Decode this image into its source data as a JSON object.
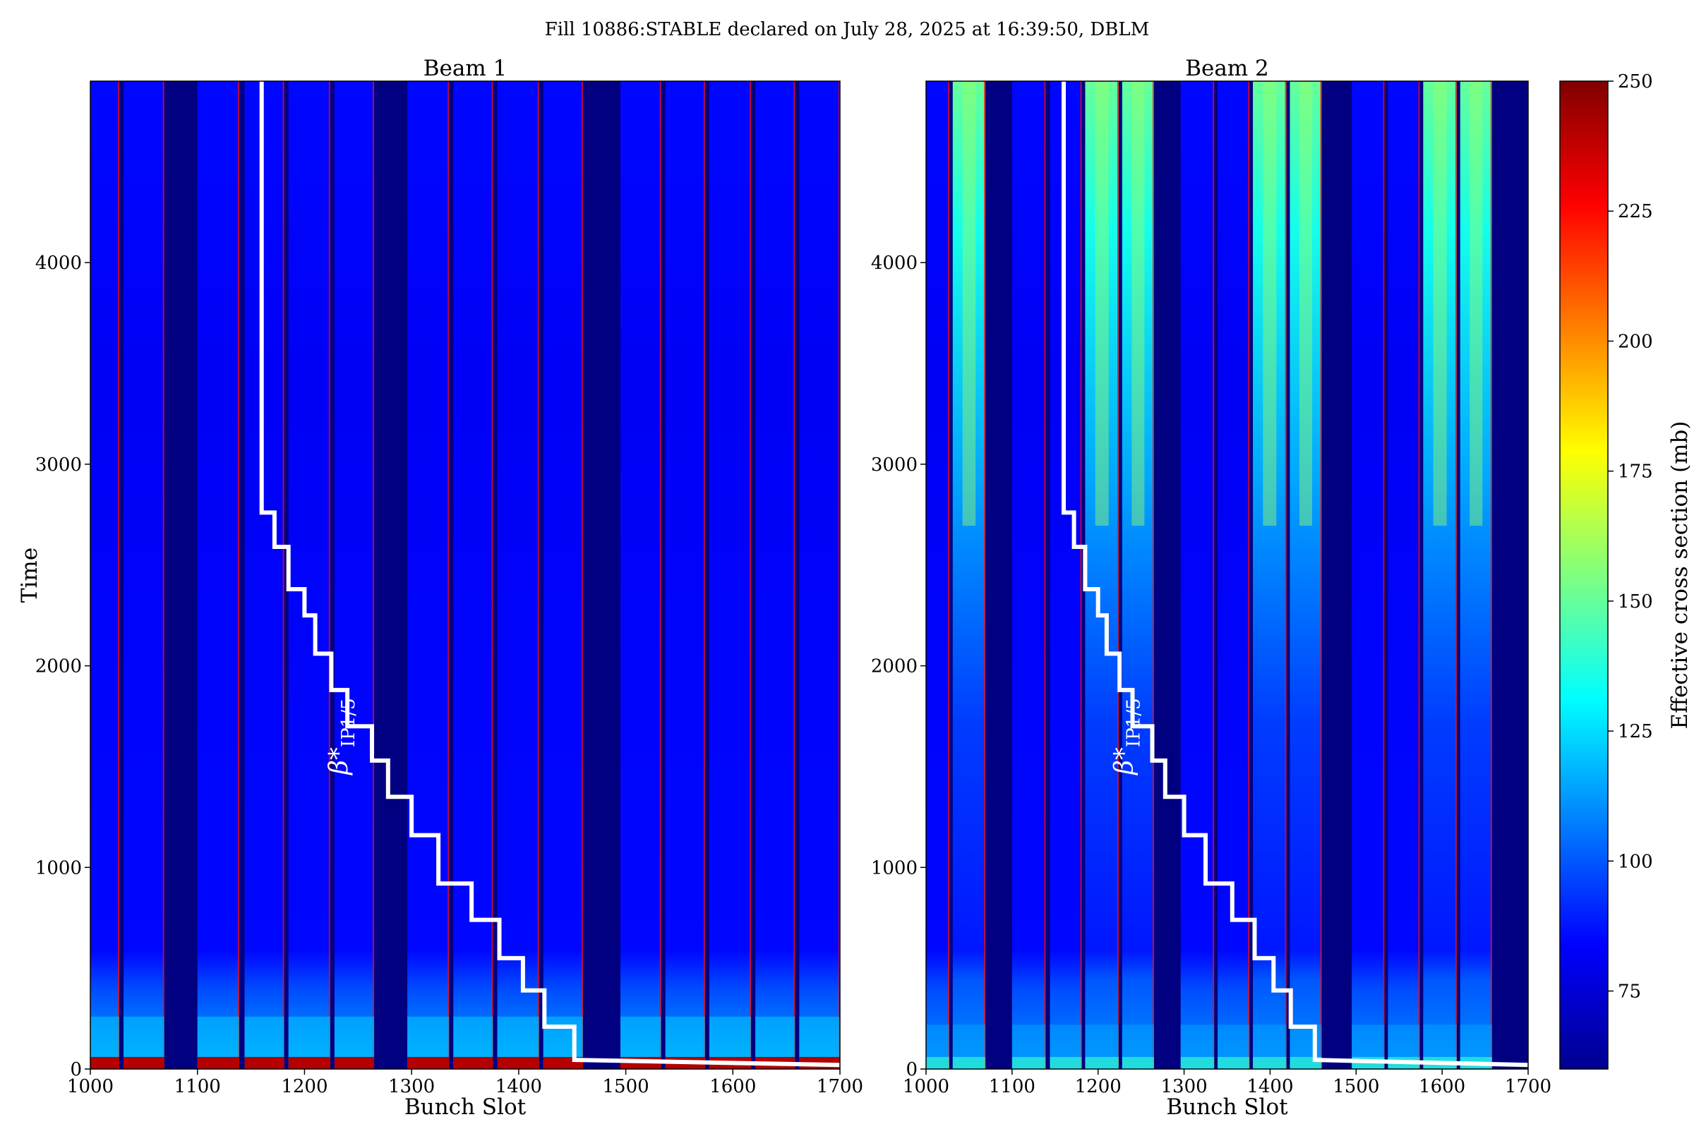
{
  "figure": {
    "title": "Fill 10886:STABLE declared on July 28, 2025 at 16:39:50, DBLM"
  },
  "colorbar": {
    "label": "Effective cross section (mb)",
    "range": [
      60,
      250
    ],
    "ticks": [
      75,
      100,
      125,
      150,
      175,
      200,
      225,
      250
    ],
    "colormap": "jet"
  },
  "chart_data": [
    {
      "type": "heatmap",
      "title": "Beam 1",
      "xlabel": "Bunch Slot",
      "ylabel": "Time",
      "xlim": [
        1000,
        1700
      ],
      "ylim": [
        0,
        4900
      ],
      "xticks": [
        1000,
        1100,
        1200,
        1300,
        1400,
        1500,
        1600,
        1700
      ],
      "yticks": [
        0,
        1000,
        2000,
        3000,
        4000
      ],
      "empty_value": 60,
      "filled_slots": [
        [
          1000,
          1027
        ],
        [
          1031,
          1069
        ],
        [
          1100,
          1139
        ],
        [
          1144,
          1181
        ],
        [
          1185,
          1224
        ],
        [
          1228,
          1265
        ],
        [
          1296,
          1335
        ],
        [
          1339,
          1376
        ],
        [
          1380,
          1419
        ],
        [
          1423,
          1460
        ],
        [
          1495,
          1533
        ],
        [
          1537,
          1574
        ],
        [
          1578,
          1617
        ],
        [
          1621,
          1658
        ],
        [
          1662,
          1700
        ]
      ],
      "typical_values": {
        "bulk": 85,
        "train_start_bottom": 240,
        "low_time_band": 115
      },
      "annotation": {
        "label": "β*",
        "subscript": "IP1/5",
        "x": 1240,
        "y": 1650
      },
      "beta_star_staircase": [
        [
          1160,
          4900
        ],
        [
          1160,
          2760
        ],
        [
          1172,
          2760
        ],
        [
          1172,
          2590
        ],
        [
          1185,
          2590
        ],
        [
          1185,
          2380
        ],
        [
          1200,
          2380
        ],
        [
          1200,
          2250
        ],
        [
          1210,
          2250
        ],
        [
          1210,
          2060
        ],
        [
          1225,
          2060
        ],
        [
          1225,
          1880
        ],
        [
          1240,
          1880
        ],
        [
          1240,
          1700
        ],
        [
          1263,
          1700
        ],
        [
          1263,
          1530
        ],
        [
          1278,
          1530
        ],
        [
          1278,
          1350
        ],
        [
          1300,
          1350
        ],
        [
          1300,
          1160
        ],
        [
          1325,
          1160
        ],
        [
          1325,
          920
        ],
        [
          1356,
          920
        ],
        [
          1356,
          740
        ],
        [
          1382,
          740
        ],
        [
          1382,
          550
        ],
        [
          1404,
          550
        ],
        [
          1404,
          390
        ],
        [
          1424,
          390
        ],
        [
          1424,
          210
        ],
        [
          1452,
          210
        ],
        [
          1452,
          45
        ],
        [
          1700,
          20
        ]
      ]
    },
    {
      "type": "heatmap",
      "title": "Beam 2",
      "xlabel": "Bunch Slot",
      "xlim": [
        1000,
        1700
      ],
      "ylim": [
        0,
        4900
      ],
      "xticks": [
        1000,
        1100,
        1200,
        1300,
        1400,
        1500,
        1600,
        1700
      ],
      "yticks": [
        0,
        1000,
        2000,
        3000,
        4000
      ],
      "empty_value": 60,
      "filled_slots": [
        [
          1000,
          1027
        ],
        [
          1031,
          1069
        ],
        [
          1100,
          1139
        ],
        [
          1144,
          1181
        ],
        [
          1185,
          1224
        ],
        [
          1228,
          1265
        ],
        [
          1296,
          1335
        ],
        [
          1339,
          1376
        ],
        [
          1380,
          1419
        ],
        [
          1423,
          1460
        ],
        [
          1495,
          1533
        ],
        [
          1537,
          1574
        ],
        [
          1578,
          1617
        ],
        [
          1621,
          1658
        ]
      ],
      "bright_trains": [
        [
          1031,
          1069
        ],
        [
          1185,
          1224
        ],
        [
          1228,
          1265
        ],
        [
          1380,
          1419
        ],
        [
          1423,
          1460
        ],
        [
          1578,
          1617
        ],
        [
          1621,
          1658
        ]
      ],
      "typical_values": {
        "bulk": 85,
        "bright_trains_top": 150,
        "low_time_band": 110
      },
      "annotation": {
        "label": "β*",
        "subscript": "IP1/5",
        "x": 1240,
        "y": 1650
      },
      "beta_star_staircase": [
        [
          1160,
          4900
        ],
        [
          1160,
          2760
        ],
        [
          1172,
          2760
        ],
        [
          1172,
          2590
        ],
        [
          1185,
          2590
        ],
        [
          1185,
          2380
        ],
        [
          1200,
          2380
        ],
        [
          1200,
          2250
        ],
        [
          1210,
          2250
        ],
        [
          1210,
          2060
        ],
        [
          1225,
          2060
        ],
        [
          1225,
          1880
        ],
        [
          1240,
          1880
        ],
        [
          1240,
          1700
        ],
        [
          1263,
          1700
        ],
        [
          1263,
          1530
        ],
        [
          1278,
          1530
        ],
        [
          1278,
          1350
        ],
        [
          1300,
          1350
        ],
        [
          1300,
          1160
        ],
        [
          1325,
          1160
        ],
        [
          1325,
          920
        ],
        [
          1356,
          920
        ],
        [
          1356,
          740
        ],
        [
          1382,
          740
        ],
        [
          1382,
          550
        ],
        [
          1404,
          550
        ],
        [
          1404,
          390
        ],
        [
          1424,
          390
        ],
        [
          1424,
          210
        ],
        [
          1452,
          210
        ],
        [
          1452,
          45
        ],
        [
          1700,
          20
        ]
      ]
    }
  ]
}
